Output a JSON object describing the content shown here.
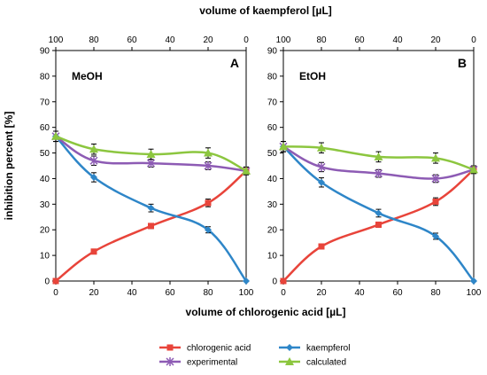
{
  "chart_data": {
    "type": "line",
    "top_axis_title": "volume of kaempferol [µL]",
    "xlabel": "volume of chlorogenic acid [µL]",
    "ylabel": "inhibition percent [%]",
    "x_ticks": [
      "0",
      "20",
      "40",
      "60",
      "80",
      "100"
    ],
    "top_ticks": [
      "100",
      "80",
      "60",
      "40",
      "20",
      "0"
    ],
    "y_ticks": [
      "0",
      "10",
      "20",
      "30",
      "40",
      "50",
      "60",
      "70",
      "80",
      "90"
    ],
    "xlim": [
      0,
      100
    ],
    "ylim": [
      0,
      90
    ],
    "grid": false,
    "legend_position": "bottom",
    "series_styles": [
      {
        "name": "chlorogenic acid",
        "color": "#e8443a",
        "marker": "square"
      },
      {
        "name": "kaempferol",
        "color": "#2e86c8",
        "marker": "diamond"
      },
      {
        "name": "experimental",
        "color": "#8d5bb4",
        "marker": "x"
      },
      {
        "name": "calculated",
        "color": "#8cc63f",
        "marker": "triangle"
      }
    ],
    "panels": [
      {
        "letter": "A",
        "solvent": "MeOH",
        "x": [
          0,
          20,
          50,
          80,
          100
        ],
        "series": [
          {
            "name": "chlorogenic acid",
            "values": [
              0,
              11.5,
              21.5,
              30.5,
              43
            ],
            "errors": [
              0,
              0.8,
              1,
              1.5,
              1.5
            ]
          },
          {
            "name": "kaempferol",
            "values": [
              56.5,
              40.5,
              28.5,
              20,
              0
            ],
            "errors": [
              2,
              1.8,
              1.5,
              1.2,
              0
            ]
          },
          {
            "name": "experimental",
            "values": [
              56.5,
              47,
              46,
              45,
              43
            ],
            "errors": [
              2,
              1.8,
              1.5,
              1.5,
              1.5
            ]
          },
          {
            "name": "calculated",
            "values": [
              56.5,
              51.5,
              49.5,
              50,
              43
            ],
            "errors": [
              2,
              2,
              2,
              2,
              1.5
            ]
          }
        ]
      },
      {
        "letter": "B",
        "solvent": "EtOH",
        "x": [
          0,
          20,
          50,
          80,
          100
        ],
        "series": [
          {
            "name": "chlorogenic acid",
            "values": [
              0,
              13.5,
              22,
              31,
              43.5
            ],
            "errors": [
              0,
              0.8,
              1,
              1.5,
              1.5
            ]
          },
          {
            "name": "kaempferol",
            "values": [
              52.5,
              38.5,
              26.5,
              17.5,
              0
            ],
            "errors": [
              2,
              1.8,
              1.5,
              1.2,
              0
            ]
          },
          {
            "name": "experimental",
            "values": [
              52.5,
              44.5,
              42,
              40,
              43.5
            ],
            "errors": [
              2,
              1.8,
              1.5,
              1.5,
              1.5
            ]
          },
          {
            "name": "calculated",
            "values": [
              52.5,
              52,
              48.5,
              48,
              43.5
            ],
            "errors": [
              2,
              2,
              2,
              2,
              1.5
            ]
          }
        ]
      }
    ]
  }
}
